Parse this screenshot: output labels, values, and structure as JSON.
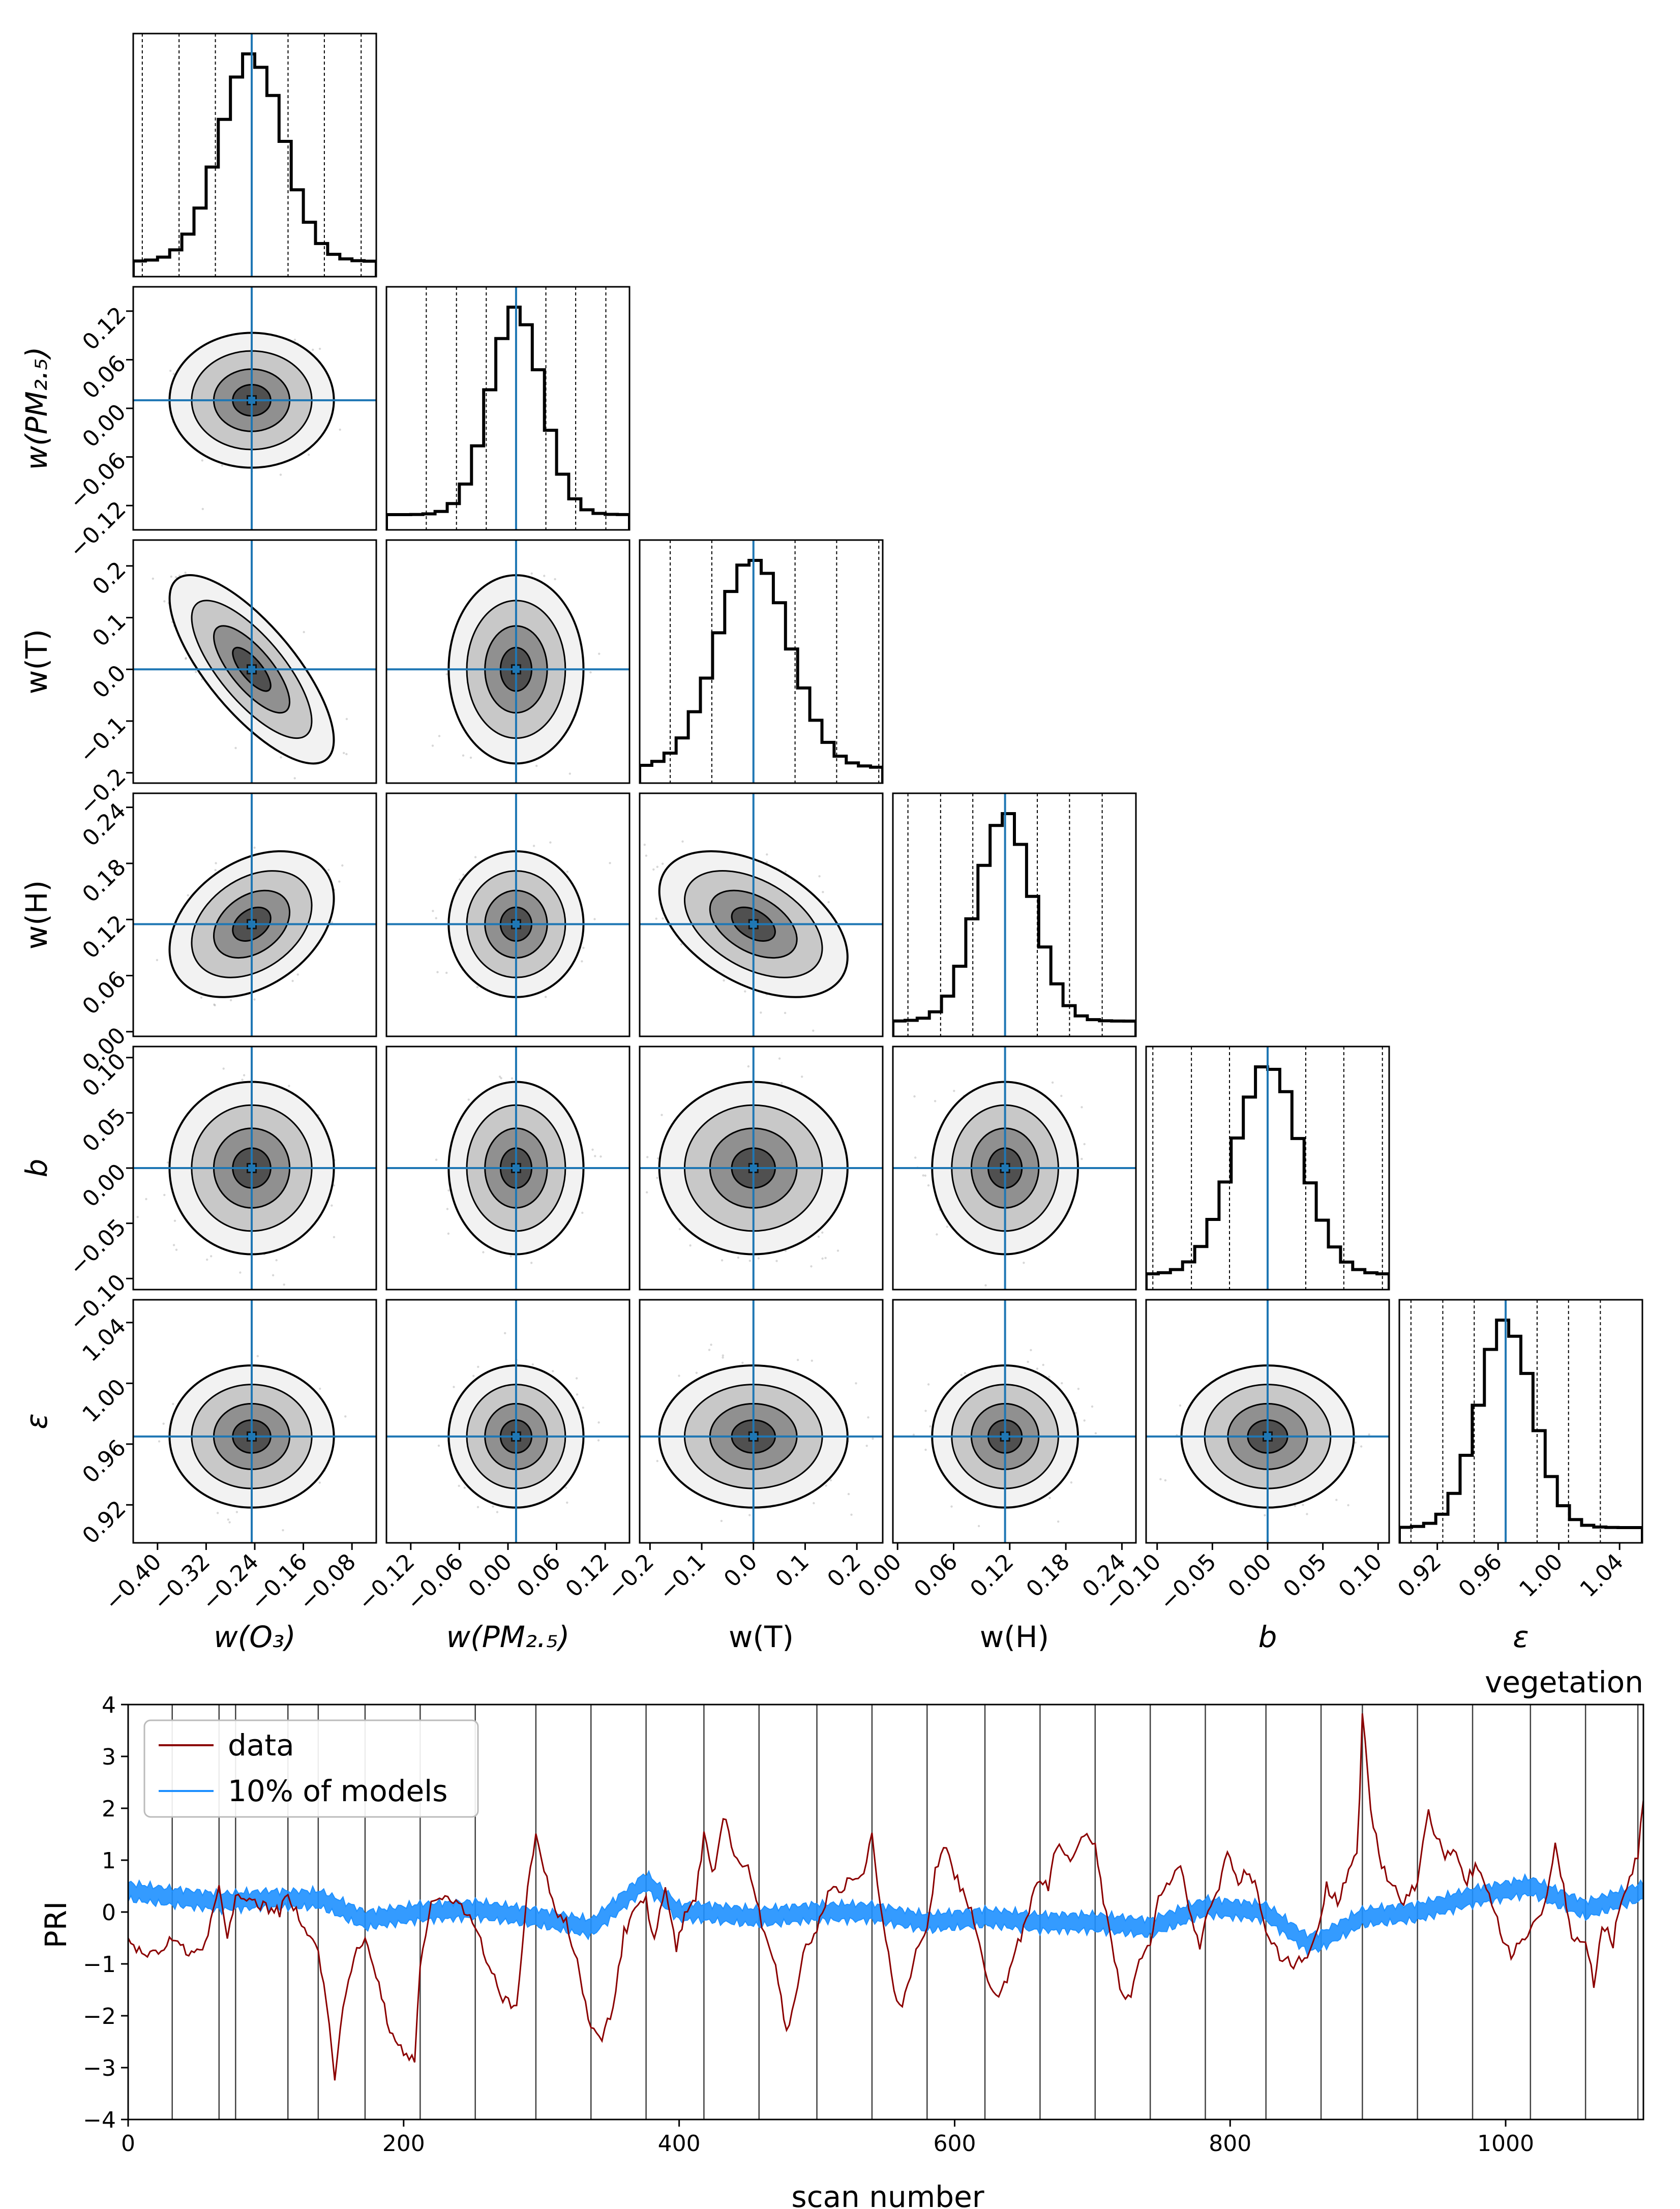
{
  "corner": {
    "parameters": [
      {
        "key": "wO3",
        "label": "w(O₃)",
        "label_y": "",
        "truth": -0.245,
        "range": [
          -0.44,
          -0.04
        ],
        "sigma": 0.052,
        "ticks": [
          "−0.40",
          "−0.32",
          "−0.24",
          "−0.16",
          "−0.08"
        ],
        "tick_values": [
          -0.4,
          -0.32,
          -0.24,
          -0.16,
          -0.08
        ]
      },
      {
        "key": "wPM",
        "label": "w(PM₂.₅)",
        "label_y": "w(PM₂.₅)",
        "truth": 0.01,
        "range": [
          -0.15,
          0.15
        ],
        "sigma": 0.032,
        "ticks": [
          "−0.12",
          "−0.06",
          "0.00",
          "0.06",
          "0.12"
        ],
        "tick_values": [
          -0.12,
          -0.06,
          0.0,
          0.06,
          0.12
        ]
      },
      {
        "key": "wT",
        "label": "w(T)",
        "label_y": "w(T)",
        "truth": 0.0,
        "range": [
          -0.22,
          0.25
        ],
        "sigma": 0.07,
        "ticks": [
          "−0.2",
          "−0.1",
          "0.0",
          "0.1",
          "0.2"
        ],
        "tick_values": [
          -0.2,
          -0.1,
          0.0,
          0.1,
          0.2
        ]
      },
      {
        "key": "wH",
        "label": "w(H)",
        "label_y": "w(H)",
        "truth": 0.115,
        "range": [
          -0.005,
          0.255
        ],
        "sigma": 0.03,
        "ticks": [
          "0.00",
          "0.06",
          "0.12",
          "0.18",
          "0.24"
        ],
        "tick_values": [
          0.0,
          0.06,
          0.12,
          0.18,
          0.24
        ]
      },
      {
        "key": "b",
        "label": "b",
        "label_y": "b",
        "truth": 0.0,
        "range": [
          -0.11,
          0.11
        ],
        "sigma": 0.03,
        "ticks": [
          "−0.10",
          "−0.05",
          "0.00",
          "0.05",
          "0.10"
        ],
        "tick_values": [
          -0.1,
          -0.05,
          0.0,
          0.05,
          0.1
        ]
      },
      {
        "key": "eps",
        "label": "ε",
        "label_y": "ε",
        "truth": 0.965,
        "range": [
          0.895,
          1.055
        ],
        "sigma": 0.018,
        "ticks": [
          "0.92",
          "0.96",
          "1.00",
          "1.04"
        ],
        "tick_values": [
          0.92,
          0.96,
          1.0,
          1.04
        ]
      }
    ],
    "correlations": {
      "wO3-wT": -0.75,
      "wO3-wH": 0.35,
      "wT-wH": -0.45
    },
    "histogram_quantiles": [
      0.0013,
      0.0228,
      0.1587,
      0.5,
      0.8413,
      0.9772,
      0.9987
    ]
  },
  "chart_data": [
    {
      "type": "corner",
      "title": "",
      "parameters": [
        "w(O₃)",
        "w(PM₂.₅)",
        "w(T)",
        "w(H)",
        "b",
        "ε"
      ],
      "truth_values": [
        -0.245,
        0.01,
        0.0,
        0.115,
        0.0,
        0.965
      ],
      "posterior_sigma": [
        0.052,
        0.032,
        0.07,
        0.03,
        0.03,
        0.018
      ],
      "correlations": {
        "w(O3)-w(T)": -0.75,
        "w(O3)-w(H)": 0.35,
        "w(T)-w(H)": -0.45
      }
    },
    {
      "type": "line",
      "title": "vegetation",
      "xlabel": "scan number",
      "ylabel": "PRI",
      "xlim": [
        0,
        1100
      ],
      "ylim": [
        -4,
        4
      ],
      "x_ticks": [
        "0",
        "200",
        "400",
        "600",
        "800",
        "1000"
      ],
      "y_ticks": [
        "−4",
        "−3",
        "−2",
        "−1",
        "0",
        "1",
        "2",
        "3",
        "4"
      ],
      "vertical_lines": [
        32,
        66,
        78,
        116,
        138,
        172,
        212,
        252,
        296,
        336,
        376,
        418,
        458,
        500,
        540,
        580,
        622,
        662,
        702,
        742,
        782,
        826,
        866,
        896,
        936,
        976,
        1018,
        1058,
        1096
      ],
      "data_points": [
        [
          0,
          -0.6
        ],
        [
          10,
          -0.75
        ],
        [
          20,
          -0.8
        ],
        [
          32,
          -0.5
        ],
        [
          45,
          -0.85
        ],
        [
          55,
          -0.7
        ],
        [
          66,
          0.5
        ],
        [
          72,
          -0.6
        ],
        [
          78,
          0.3
        ],
        [
          90,
          0.2
        ],
        [
          100,
          0.1
        ],
        [
          110,
          0.0
        ],
        [
          116,
          0.4
        ],
        [
          125,
          -0.2
        ],
        [
          138,
          -0.7
        ],
        [
          145,
          -2.0
        ],
        [
          150,
          -3.15
        ],
        [
          158,
          -1.5
        ],
        [
          165,
          -0.8
        ],
        [
          172,
          -0.5
        ],
        [
          180,
          -1.2
        ],
        [
          190,
          -2.3
        ],
        [
          200,
          -2.7
        ],
        [
          208,
          -2.9
        ],
        [
          212,
          -1.0
        ],
        [
          220,
          0.1
        ],
        [
          235,
          0.3
        ],
        [
          252,
          -0.2
        ],
        [
          260,
          -0.9
        ],
        [
          272,
          -1.7
        ],
        [
          282,
          -1.8
        ],
        [
          290,
          0.5
        ],
        [
          296,
          1.5
        ],
        [
          302,
          0.8
        ],
        [
          310,
          0.0
        ],
        [
          318,
          -0.2
        ],
        [
          326,
          -1.0
        ],
        [
          336,
          -2.2
        ],
        [
          345,
          -2.4
        ],
        [
          352,
          -1.8
        ],
        [
          360,
          -0.4
        ],
        [
          368,
          0.0
        ],
        [
          376,
          0.2
        ],
        [
          382,
          -0.5
        ],
        [
          390,
          0.4
        ],
        [
          398,
          -0.7
        ],
        [
          405,
          0.0
        ],
        [
          412,
          0.3
        ],
        [
          418,
          1.5
        ],
        [
          425,
          0.6
        ],
        [
          432,
          1.9
        ],
        [
          440,
          1.0
        ],
        [
          450,
          0.8
        ],
        [
          458,
          0.0
        ],
        [
          462,
          -0.4
        ],
        [
          470,
          -1.0
        ],
        [
          478,
          -2.3
        ],
        [
          485,
          -1.6
        ],
        [
          490,
          -0.8
        ],
        [
          500,
          -0.3
        ],
        [
          510,
          0.5
        ],
        [
          518,
          0.4
        ],
        [
          526,
          0.7
        ],
        [
          532,
          0.6
        ],
        [
          540,
          1.5
        ],
        [
          546,
          0.2
        ],
        [
          552,
          -0.8
        ],
        [
          558,
          -1.8
        ],
        [
          562,
          -1.9
        ],
        [
          570,
          -0.9
        ],
        [
          580,
          -0.4
        ],
        [
          586,
          0.8
        ],
        [
          592,
          1.3
        ],
        [
          600,
          0.7
        ],
        [
          606,
          0.4
        ],
        [
          612,
          0.0
        ],
        [
          618,
          -0.6
        ],
        [
          622,
          -1.1
        ],
        [
          630,
          -1.6
        ],
        [
          638,
          -1.3
        ],
        [
          646,
          -0.6
        ],
        [
          652,
          -0.2
        ],
        [
          658,
          0.5
        ],
        [
          662,
          0.7
        ],
        [
          668,
          0.5
        ],
        [
          675,
          1.4
        ],
        [
          685,
          1.0
        ],
        [
          695,
          1.5
        ],
        [
          702,
          1.3
        ],
        [
          708,
          0.2
        ],
        [
          716,
          -0.9
        ],
        [
          722,
          -1.7
        ],
        [
          728,
          -1.6
        ],
        [
          734,
          -1.0
        ],
        [
          742,
          -0.6
        ],
        [
          748,
          0.2
        ],
        [
          756,
          0.6
        ],
        [
          764,
          0.9
        ],
        [
          772,
          -0.1
        ],
        [
          778,
          -0.7
        ],
        [
          782,
          -0.2
        ],
        [
          790,
          0.3
        ],
        [
          798,
          1.1
        ],
        [
          806,
          0.6
        ],
        [
          814,
          0.8
        ],
        [
          820,
          0.4
        ],
        [
          826,
          -0.3
        ],
        [
          836,
          -0.9
        ],
        [
          846,
          -1.0
        ],
        [
          856,
          -0.8
        ],
        [
          864,
          -0.4
        ],
        [
          870,
          0.5
        ],
        [
          878,
          0.2
        ],
        [
          886,
          0.8
        ],
        [
          893,
          1.3
        ],
        [
          896,
          3.85
        ],
        [
          902,
          1.9
        ],
        [
          910,
          0.9
        ],
        [
          918,
          0.5
        ],
        [
          926,
          0.2
        ],
        [
          936,
          0.6
        ],
        [
          944,
          1.9
        ],
        [
          950,
          1.4
        ],
        [
          956,
          1.1
        ],
        [
          964,
          1.1
        ],
        [
          972,
          0.6
        ],
        [
          978,
          0.9
        ],
        [
          986,
          0.5
        ],
        [
          992,
          0.0
        ],
        [
          998,
          -0.5
        ],
        [
          1004,
          -0.8
        ],
        [
          1010,
          -0.6
        ],
        [
          1018,
          -0.3
        ],
        [
          1024,
          -0.2
        ],
        [
          1030,
          0.4
        ],
        [
          1036,
          1.3
        ],
        [
          1042,
          0.5
        ],
        [
          1048,
          -0.5
        ],
        [
          1054,
          -0.5
        ],
        [
          1058,
          -0.5
        ],
        [
          1064,
          -1.4
        ],
        [
          1070,
          -0.2
        ],
        [
          1078,
          -0.6
        ],
        [
          1084,
          0.3
        ],
        [
          1090,
          0.6
        ],
        [
          1096,
          1.1
        ],
        [
          1100,
          2.25
        ]
      ],
      "model_band_center": [
        [
          0,
          0.4
        ],
        [
          30,
          0.3
        ],
        [
          66,
          0.2
        ],
        [
          100,
          0.25
        ],
        [
          140,
          0.25
        ],
        [
          172,
          -0.15
        ],
        [
          212,
          0.0
        ],
        [
          252,
          0.05
        ],
        [
          296,
          -0.1
        ],
        [
          336,
          -0.3
        ],
        [
          376,
          0.6
        ],
        [
          400,
          0.0
        ],
        [
          418,
          0.0
        ],
        [
          458,
          -0.1
        ],
        [
          500,
          0.0
        ],
        [
          540,
          0.0
        ],
        [
          580,
          -0.2
        ],
        [
          622,
          -0.1
        ],
        [
          662,
          -0.2
        ],
        [
          702,
          -0.2
        ],
        [
          742,
          -0.3
        ],
        [
          782,
          0.1
        ],
        [
          826,
          0.0
        ],
        [
          856,
          -0.6
        ],
        [
          866,
          -0.55
        ],
        [
          896,
          -0.1
        ],
        [
          936,
          0.0
        ],
        [
          976,
          0.3
        ],
        [
          1018,
          0.5
        ],
        [
          1058,
          0.05
        ],
        [
          1100,
          0.4
        ]
      ],
      "model_band_halfwidth": 0.2,
      "series": [
        {
          "name": "data",
          "color": "#8b0000"
        },
        {
          "name": "10% of models",
          "color": "#1e90ff"
        }
      ],
      "legend": "upper left"
    }
  ],
  "bottom": {
    "title": "vegetation",
    "xlabel": "scan number",
    "ylabel": "PRI",
    "x_ticks": [
      {
        "value": 0,
        "label": "0"
      },
      {
        "value": 200,
        "label": "200"
      },
      {
        "value": 400,
        "label": "400"
      },
      {
        "value": 600,
        "label": "600"
      },
      {
        "value": 800,
        "label": "800"
      },
      {
        "value": 1000,
        "label": "1000"
      }
    ],
    "y_ticks": [
      {
        "value": -4,
        "label": "−4"
      },
      {
        "value": -3,
        "label": "−3"
      },
      {
        "value": -2,
        "label": "−2"
      },
      {
        "value": -1,
        "label": "−1"
      },
      {
        "value": 0,
        "label": "0"
      },
      {
        "value": 1,
        "label": "1"
      },
      {
        "value": 2,
        "label": "2"
      },
      {
        "value": 3,
        "label": "3"
      },
      {
        "value": 4,
        "label": "4"
      }
    ],
    "legend": [
      {
        "label": "data",
        "color": "#8b0000"
      },
      {
        "label": "10% of models",
        "color": "#1e90ff"
      }
    ]
  }
}
